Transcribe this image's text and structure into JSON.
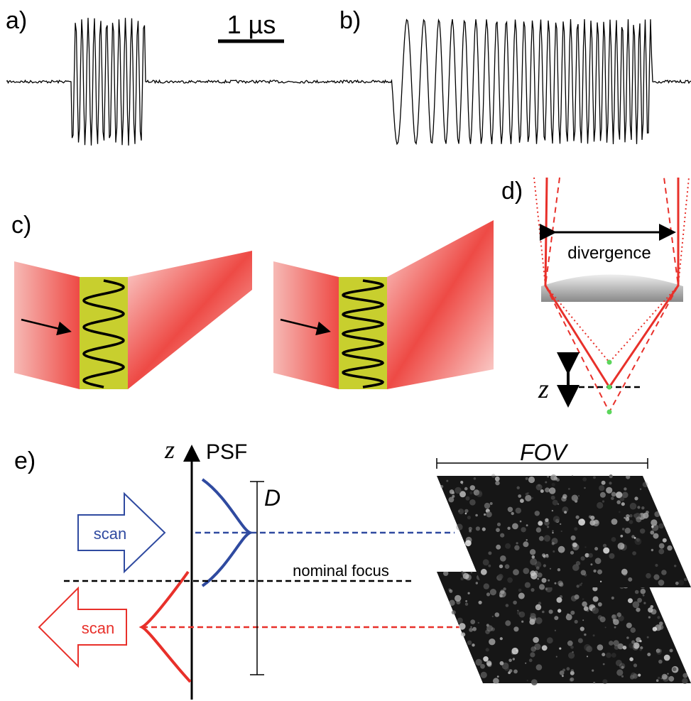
{
  "panels": {
    "a": {
      "label": "a)",
      "scale_bar": "1 µs"
    },
    "b": {
      "label": "b)"
    },
    "c": {
      "label": "c)"
    },
    "d": {
      "label": "d)",
      "divergence": "divergence",
      "axis": "z"
    },
    "e": {
      "label": "e)",
      "axis": "z",
      "psf": "PSF",
      "depth": "D",
      "fov": "FOV",
      "scan_up": "scan",
      "scan_down": "scan",
      "nominal_focus": "nominal focus"
    }
  }
}
